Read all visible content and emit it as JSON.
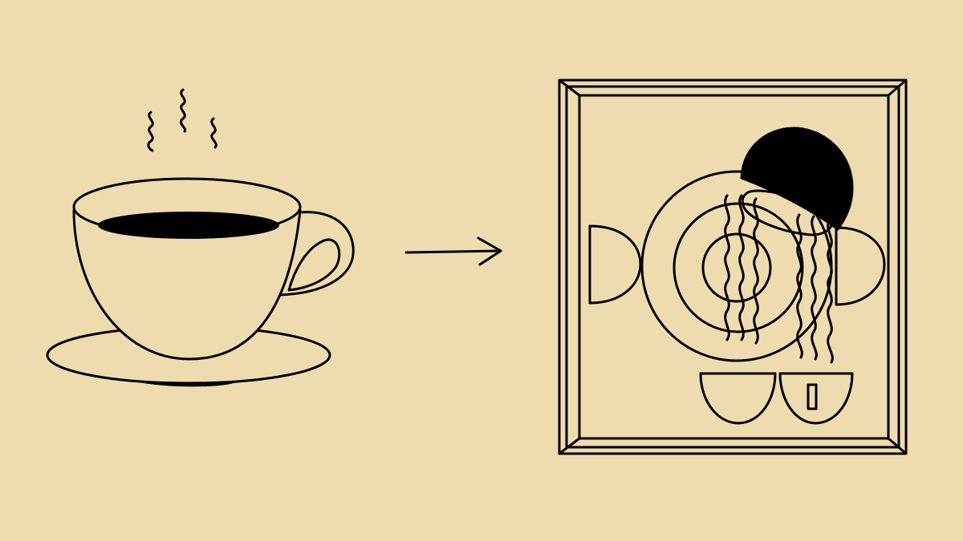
{
  "scene": {
    "description_free": true,
    "colors": {
      "background": "#EEDBB0",
      "ink": "#000000"
    },
    "icons": [
      "coffee-cup-icon",
      "steam-icon",
      "saucer-icon",
      "arrow-right-icon",
      "picture-frame-icon",
      "abstract-artwork-icon"
    ]
  }
}
